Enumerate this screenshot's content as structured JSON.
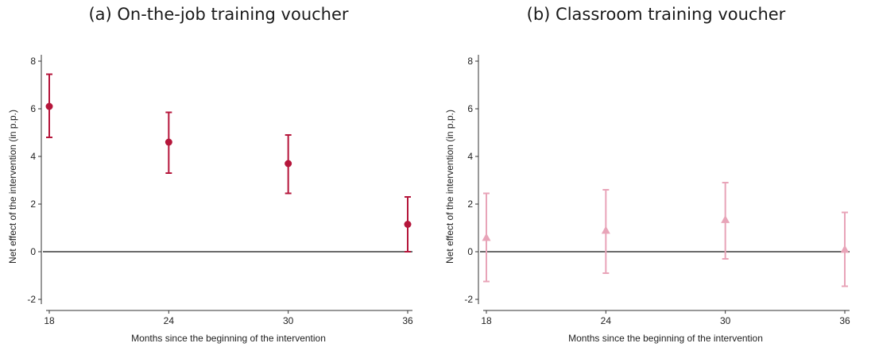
{
  "chart_data": [
    {
      "type": "scatter",
      "title": "(a) On-the-job training voucher",
      "xlabel": "Months since the beginning of the intervention",
      "ylabel": "Net effect of the intervention (in p.p.)",
      "x": [
        18,
        24,
        30,
        36
      ],
      "xlim": [
        18,
        36
      ],
      "ylim": [
        -2,
        8
      ],
      "xticks": [
        18,
        24,
        30,
        36
      ],
      "yticks": [
        -2,
        0,
        2,
        4,
        6,
        8
      ],
      "reference_line_y": 0,
      "marker": "circle",
      "color": "#b5163b",
      "series": [
        {
          "values": [
            6.1,
            4.6,
            3.7,
            1.15
          ],
          "ci_low": [
            4.8,
            3.3,
            2.45,
            0.0
          ],
          "ci_high": [
            7.45,
            5.85,
            4.9,
            2.3
          ]
        }
      ]
    },
    {
      "type": "scatter",
      "title": "(b) Classroom training voucher",
      "xlabel": "Months since the beginning of the intervention",
      "ylabel": "Net effect of the intervention (in p.p.)",
      "x": [
        18,
        24,
        30,
        36
      ],
      "xlim": [
        18,
        36
      ],
      "ylim": [
        -2,
        8
      ],
      "xticks": [
        18,
        24,
        30,
        36
      ],
      "yticks": [
        -2,
        0,
        2,
        4,
        6,
        8
      ],
      "reference_line_y": 0,
      "marker": "triangle",
      "color": "#e8a4b8",
      "series": [
        {
          "values": [
            0.6,
            0.9,
            1.35,
            0.1
          ],
          "ci_low": [
            -1.25,
            -0.9,
            -0.3,
            -1.45
          ],
          "ci_high": [
            2.45,
            2.6,
            2.9,
            1.65
          ]
        }
      ]
    }
  ]
}
